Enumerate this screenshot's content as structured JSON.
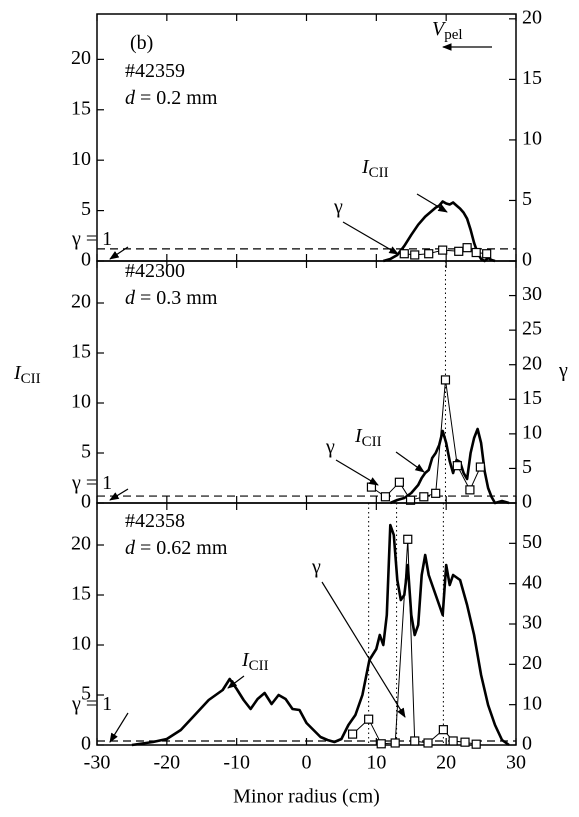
{
  "chart_data": [
    {
      "type": "line",
      "xlim": [
        -30,
        30
      ],
      "xticks": [
        -30,
        -20,
        -10,
        0,
        10,
        20,
        30
      ],
      "ylim": [
        0,
        24.5
      ],
      "yticks": [
        0,
        5,
        10,
        15,
        20
      ],
      "y2lim": [
        0,
        20.4
      ],
      "y2ticks": [
        0,
        5,
        10,
        15,
        20
      ],
      "reference_line": {
        "axis": "y2",
        "value": 1
      },
      "series": [
        {
          "color": "#000000",
          "x": [
            11,
            12,
            13,
            14,
            15,
            16,
            17,
            18,
            18.5,
            19,
            19.5,
            20,
            20.5,
            21,
            21.5,
            22,
            22.5,
            23,
            23.5,
            24,
            24.5,
            25,
            25.5,
            26,
            26.5,
            27
          ],
          "values": [
            0,
            0.2,
            0.6,
            1.5,
            2.6,
            3.6,
            4.4,
            5.0,
            5.3,
            5.5,
            5.9,
            5.7,
            5.6,
            5.8,
            5.5,
            5.2,
            4.8,
            4.2,
            3.1,
            1.8,
            0.8,
            0.2,
            0,
            0.3,
            0.1,
            0
          ]
        },
        {
          "color": "#000000",
          "axis": "y2",
          "marker": "square",
          "x": [
            14,
            15.5,
            17.5,
            19.5,
            21.8,
            23,
            24.3,
            25.8
          ],
          "values": [
            0.6,
            0.5,
            0.6,
            0.9,
            0.8,
            1.1,
            0.7,
            0.6
          ]
        }
      ],
      "annotations": [
        {
          "text": "(b)"
        },
        {
          "text": "#42359"
        },
        {
          "italic": "d",
          "text": " = 0.2 mm"
        },
        {
          "italic": "V",
          "sub": "pel"
        },
        {
          "italic": "I",
          "sub": "CII"
        },
        {
          "text": "γ"
        },
        {
          "text": "γ = 1"
        }
      ]
    },
    {
      "type": "line",
      "xlim": [
        -30,
        30
      ],
      "xticks": [
        -30,
        -20,
        -10,
        0,
        10,
        20,
        30
      ],
      "ylim": [
        0,
        24.2
      ],
      "yticks": [
        0,
        5,
        10,
        15,
        20
      ],
      "y2lim": [
        0,
        35
      ],
      "y2ticks": [
        0,
        5,
        10,
        15,
        20,
        25,
        30
      ],
      "ylabel": {
        "italic": "I",
        "sub": "CII"
      },
      "y2label": "γ",
      "reference_line": {
        "axis": "y2",
        "value": 1
      },
      "vlines": [
        19.9
      ],
      "series": [
        {
          "color": "#000000",
          "x": [
            12,
            13,
            14,
            15,
            16,
            16.5,
            17,
            17.5,
            18,
            18.5,
            19,
            19.5,
            20,
            20.5,
            21,
            21.5,
            22,
            22.5,
            23,
            23.5,
            24,
            24.5,
            25,
            25.5,
            26,
            26.5,
            27,
            28,
            29
          ],
          "values": [
            0,
            0.3,
            0.5,
            1,
            1.8,
            2.5,
            3,
            3.3,
            4.5,
            5,
            5.8,
            7.2,
            6,
            4.2,
            3,
            4.3,
            4.1,
            3,
            2.4,
            5,
            6.5,
            7.4,
            6,
            3.2,
            1.5,
            0.6,
            0,
            0.2,
            0
          ]
        },
        {
          "color": "#000000",
          "axis": "y2",
          "marker": "square",
          "x": [
            9.3,
            11.3,
            13.3,
            14.9,
            16.8,
            18.5,
            19.9,
            21.6,
            23.4,
            24.9
          ],
          "values": [
            2.3,
            0.9,
            3.0,
            0.4,
            0.9,
            1.4,
            17.8,
            5.4,
            1.9,
            5.2
          ]
        }
      ],
      "annotations": [
        {
          "text": "#42300"
        },
        {
          "italic": "d",
          "text": " = 0.3 mm"
        },
        {
          "italic": "I",
          "sub": "CII"
        },
        {
          "text": "γ"
        },
        {
          "text": "γ = 1"
        }
      ]
    },
    {
      "type": "line",
      "xlim": [
        -30,
        30
      ],
      "xticks": [
        -30,
        -20,
        -10,
        0,
        10,
        20,
        30
      ],
      "xlabel": "Minor radius  (cm)",
      "ylim": [
        0,
        24.2
      ],
      "yticks": [
        0,
        5,
        10,
        15,
        20
      ],
      "y2lim": [
        0,
        60
      ],
      "y2ticks": [
        0,
        10,
        20,
        30,
        40,
        50
      ],
      "reference_line": {
        "axis": "y2",
        "value": 1
      },
      "vlines": [
        8.9,
        12.9,
        19.6
      ],
      "series": [
        {
          "color": "#000000",
          "x": [
            -25,
            -22,
            -20,
            -18,
            -16,
            -14,
            -12,
            -11,
            -10,
            -9,
            -8,
            -7,
            -6,
            -5,
            -4,
            -3,
            -2,
            -1,
            0,
            1,
            2,
            3,
            4,
            5,
            6,
            7,
            8,
            9,
            10,
            10.5,
            11,
            11.5,
            12,
            12.5,
            13,
            13.5,
            14,
            14.5,
            15,
            15.5,
            16,
            16.5,
            17,
            17.5,
            18,
            18.5,
            19,
            19.5,
            20,
            20.5,
            21,
            22,
            23,
            24,
            25,
            26,
            27,
            28,
            29
          ],
          "values": [
            0,
            0.3,
            0.6,
            1.5,
            3,
            4.5,
            5.5,
            6.6,
            5.6,
            4.5,
            3.6,
            4.6,
            5.2,
            4.1,
            5.0,
            4.6,
            3.6,
            3.5,
            2.2,
            1.5,
            0.8,
            0.5,
            0.3,
            0.6,
            2,
            3,
            5,
            8.5,
            9.6,
            11,
            10,
            13,
            22,
            21,
            16.5,
            14.5,
            15,
            18,
            13,
            11,
            12,
            17,
            19,
            17,
            16,
            15,
            14,
            13,
            18,
            16,
            17,
            16.5,
            14,
            11,
            7,
            4,
            2,
            0.5,
            0
          ]
        },
        {
          "color": "#000000",
          "axis": "y2",
          "marker": "square",
          "x": [
            6.6,
            8.9,
            10.7,
            12.7,
            14.5,
            15.5,
            17.4,
            19.6,
            21,
            22.7,
            24.3
          ],
          "values": [
            2.7,
            6.4,
            0.3,
            0.5,
            51,
            1,
            0.5,
            3.8,
            1,
            0.7,
            0.2
          ]
        }
      ],
      "annotations": [
        {
          "text": "#42358"
        },
        {
          "italic": "d",
          "text": " = 0.62 mm"
        },
        {
          "text": "γ"
        },
        {
          "italic": "I",
          "sub": "CII"
        },
        {
          "text": "γ = 1"
        }
      ]
    }
  ]
}
